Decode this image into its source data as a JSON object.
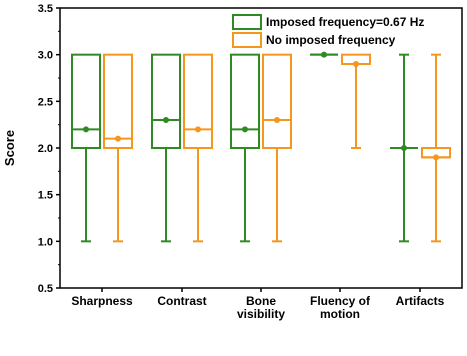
{
  "chart_data": {
    "type": "box",
    "title": "",
    "xlabel": "",
    "ylabel": "Score",
    "ylim": [
      0.5,
      3.5
    ],
    "yticks": [
      "0.5",
      "1.0",
      "1.5",
      "2.0",
      "2.5",
      "3.0",
      "3.5"
    ],
    "grid": false,
    "legend_position": "top-right",
    "categories": [
      [
        "Sharpness"
      ],
      [
        "Contrast"
      ],
      [
        "Bone",
        "visibility"
      ],
      [
        "Fluency of",
        "motion"
      ],
      [
        "Artifacts"
      ]
    ],
    "series": [
      {
        "name": "Imposed frequency=0.67 Hz",
        "color": "#2e8b22",
        "boxes": [
          {
            "min": 1.0,
            "q1": 2.0,
            "median": 2.2,
            "q3": 3.0,
            "max": 3.0,
            "mean": 2.2
          },
          {
            "min": 1.0,
            "q1": 2.0,
            "median": 2.3,
            "q3": 3.0,
            "max": 3.0,
            "mean": 2.3
          },
          {
            "min": 1.0,
            "q1": 2.0,
            "median": 2.2,
            "q3": 3.0,
            "max": 3.0,
            "mean": 2.2
          },
          {
            "min": 3.0,
            "q1": 3.0,
            "median": 3.0,
            "q3": 3.0,
            "max": 3.0,
            "mean": 3.0
          },
          {
            "min": 1.0,
            "q1": 2.0,
            "median": 2.0,
            "q3": 2.0,
            "max": 3.0,
            "mean": 2.0
          }
        ]
      },
      {
        "name": "No imposed frequency",
        "color": "#f5961e",
        "boxes": [
          {
            "min": 1.0,
            "q1": 2.0,
            "median": 2.1,
            "q3": 3.0,
            "max": 3.0,
            "mean": 2.1
          },
          {
            "min": 1.0,
            "q1": 2.0,
            "median": 2.2,
            "q3": 3.0,
            "max": 3.0,
            "mean": 2.2
          },
          {
            "min": 1.0,
            "q1": 2.0,
            "median": 2.3,
            "q3": 3.0,
            "max": 3.0,
            "mean": 2.3
          },
          {
            "min": 2.0,
            "q1": 2.9,
            "median": 2.9,
            "q3": 3.0,
            "max": 3.0,
            "mean": 2.9
          },
          {
            "min": 1.0,
            "q1": 1.9,
            "median": 1.9,
            "q3": 2.0,
            "max": 3.0,
            "mean": 1.9
          }
        ]
      }
    ]
  }
}
